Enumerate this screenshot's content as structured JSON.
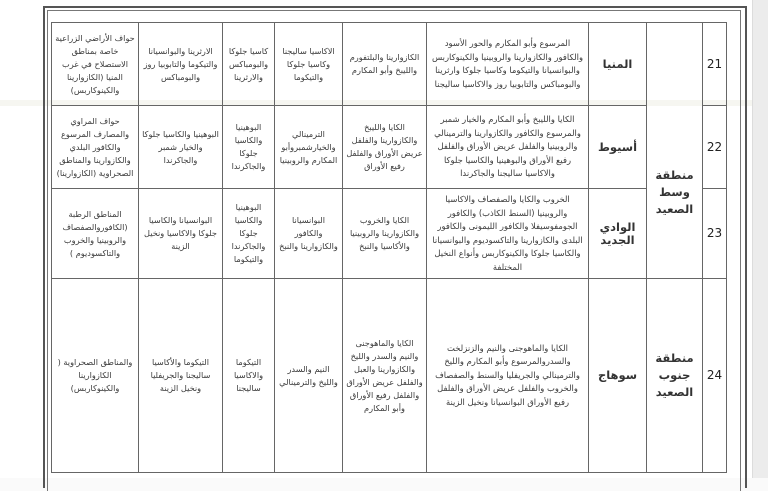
{
  "rows": [
    {
      "number": "21",
      "governorate": "المنيا",
      "species_main": "المرسوع وأبو المكارم والحور الأسود والكافور والكازوارينا والروبينيا والكينوكاربس والبوانسيانا والتيكوما وكاسيا جلوكا وارثرينا والبومباكس والتابوبيا روز والاكاسيا ساليجنا",
      "col5": "الكازوارينا والبلتفورم والليبخ وأبو المكارم",
      "col6": "الاكاسيا ساليجنا وكاسيا جلوكا والتيكوما",
      "col7": "كاسيا جلوكا والبومباكس والارثرينا",
      "col8": "الارثرينا والبوانسيانا والتيكوما والتابوبيا روز والبومباكس",
      "col9": "حواف الأراضي الزراعية خاصة بمناطق الاستصلاح في غرب المنيا (الكازوارينا والكينوكاربس)"
    },
    {
      "number": "22",
      "governorate": "أسيوط",
      "species_main": "الكايا والليبخ وأبو المكارم والخيار شمبر والمرسوع والكافور والكازوارينا والترمينالي والروبينيا والفلفل عريض الأوراق والفلفل رفيع الأوراق والبوهينيا والكاسيا جلوكا والاكاسيا ساليجنا والجاكرندا",
      "col5": "الكايا والليبخ والكازوارينا والفلفل عريض الأوراق والفلفل رفيع الأوراق",
      "col6": "الترمينالي والخيارشمبروأبو المكارم والروبينيا",
      "col7": "البوهينيا والكاسيا جلوكا والجاكرندا",
      "col8": "البوهينيا والكاسيا جلوكا والخيار شمبر والجاكرندا",
      "col9": "حواف المراوي والمصارف المرسوع والكافور البلدي والكازوارينا والمناطق الصحراوية (الكازوارينا)"
    },
    {
      "number": "23",
      "governorate": "الوادي الجديد",
      "species_main": "الخروب والكايا والصفصاف والاكاسيا والروبينيا (السنط الكاذب) والكافور الجومفوسيفلا والكافور الليمونى والكافور البلدى والكازوارينا والتاكسوديوم والبوانسيانا والكاسيا جلوكا والكينوكاربس وأنواع النخيل المختلفة",
      "col5": "الكايا والخروب والكازوارينا والروبينيا والأكاسيا والنبخ",
      "col6": "البوانسيانا والكافور والكازوارينا والنبخ",
      "col7": "البوهينيا والكاسيا جلوكا والجاكرندا والتيكوما",
      "col8": "البوانسيانا والكاسيا جلوكا والاكاسيا ونخيل الزينة",
      "col9": "المناطق الرطبة (الكافوروالصفصاف والروبينيا والخروب والتاكسوديوم )"
    },
    {
      "number": "24",
      "governorate": "سوهاج",
      "species_main": "الكايا والماهوجنى والنيم والزنزلخت والسدروالمرسوع وأبو المكارم والليخ والترمينالي والجريفليا والسنط والصفصاف والخروب والفلفل عريض الأوراق والفلفل رفيع الأوراق البوانسيانا ونخيل الزينة",
      "col5": "الكايا والماهوجنى والنيم والسدر والليخ والكازوارينا والعبل والفلفل عريض الأوراق والفلفل رفيع الأوراق وأبو المكارم",
      "col6": "النيم والسدر والليخ والترمينالي",
      "col7": "التيكوما والاكاسيا ساليجنا",
      "col8": "التيكوما والأكاسيا ساليجنا والجريفليا ونخيل الزينة",
      "col9": "والمناطق الصحراوية ( الكازوارينا والكينوكاربس)"
    }
  ],
  "regions": {
    "middle_upper_egypt": "منطقة وسط الصعيد",
    "south_upper_egypt": "منطقة جنوب الصعيد"
  }
}
